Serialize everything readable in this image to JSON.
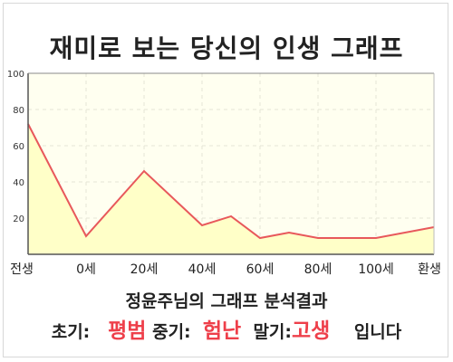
{
  "title": "재미로 보는 당신의 인생 그래프",
  "chart_data": {
    "type": "area",
    "title": "재미로 보는 당신의 인생 그래프",
    "x_ticks": [
      "전생",
      "0세",
      "20세",
      "40세",
      "60세",
      "80세",
      "100세",
      "환생"
    ],
    "y_ticks": [
      "20",
      "40",
      "60",
      "80",
      "100"
    ],
    "ylim": [
      0,
      100
    ],
    "grid": true,
    "points": [
      {
        "x": "전생",
        "y": 72
      },
      {
        "x": "0세",
        "y": 10
      },
      {
        "x": "20세",
        "y": 46
      },
      {
        "x": "40세",
        "y": 16
      },
      {
        "x": "50세",
        "y": 21
      },
      {
        "x": "60세",
        "y": 9
      },
      {
        "x": "70세",
        "y": 12
      },
      {
        "x": "80세",
        "y": 9
      },
      {
        "x": "100세",
        "y": 9
      },
      {
        "x": "환생",
        "y": 15
      }
    ],
    "colors": {
      "line": "#e8585b",
      "fill": "#ffffc8",
      "plot_bg": "#fffff0"
    }
  },
  "summary": {
    "line1": "정윤주님의 그래프 분석결과",
    "early_label": "초기:",
    "early_value": "평범",
    "middle_label": "중기:",
    "middle_value": "험난",
    "late_label": "말기:",
    "late_value": "고생",
    "ending": "입니다"
  }
}
